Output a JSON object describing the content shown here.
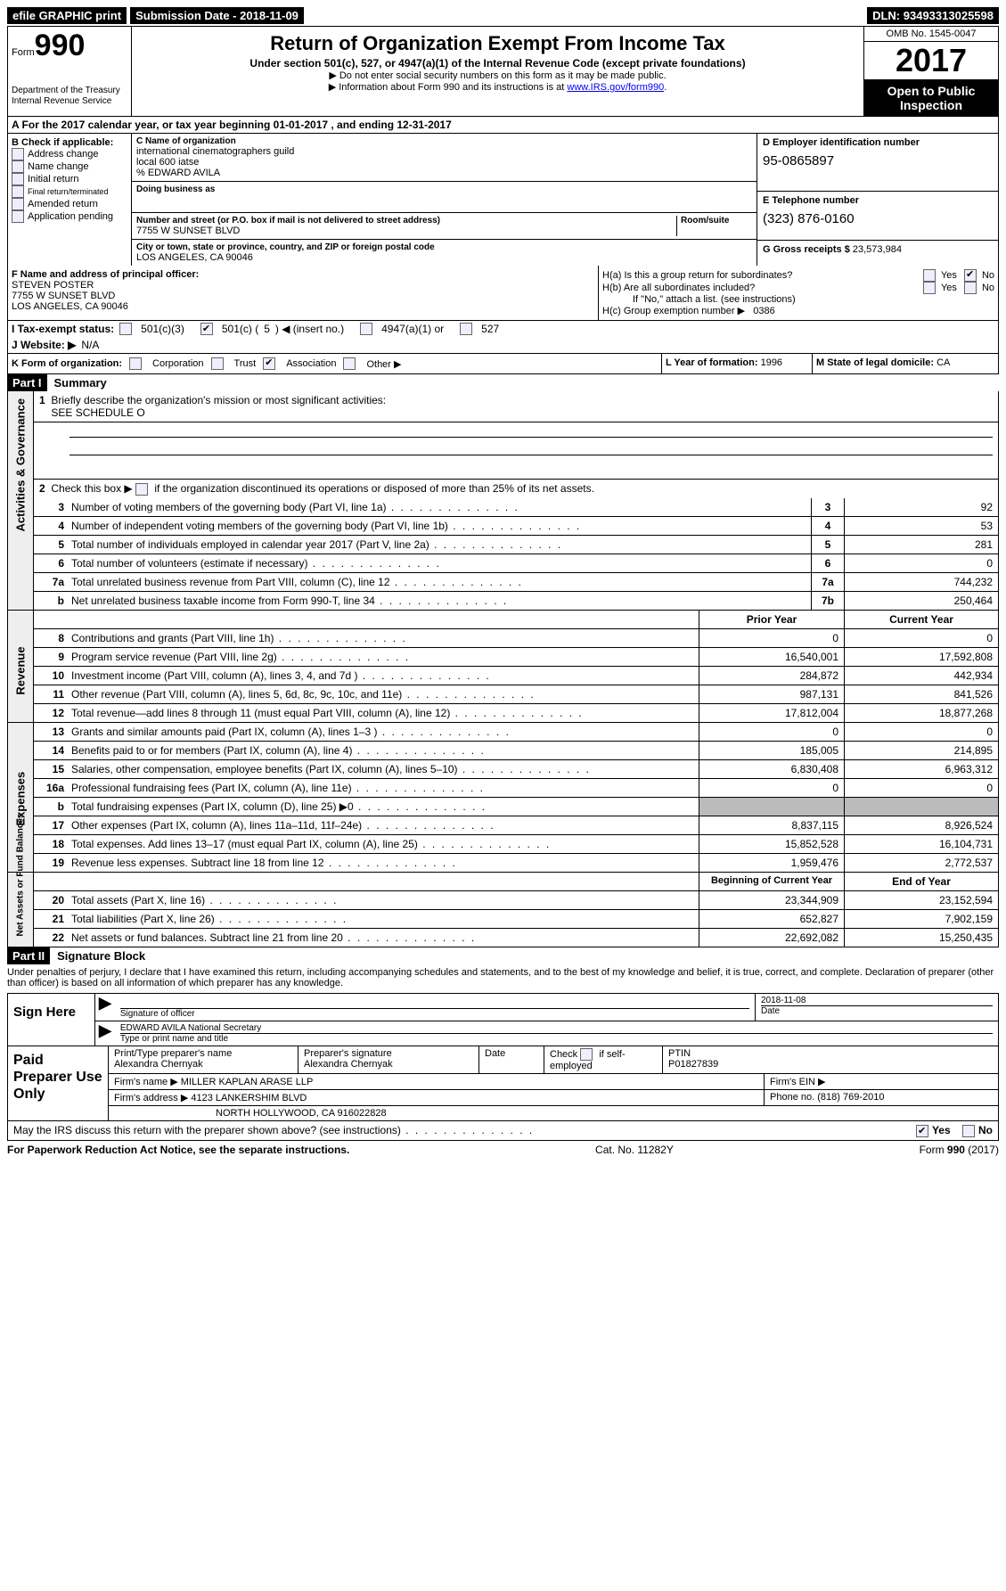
{
  "topbar": {
    "efile": "efile GRAPHIC print",
    "sub_label": "Submission Date -",
    "sub_date": "2018-11-09",
    "dln_label": "DLN:",
    "dln": "93493313025598"
  },
  "header": {
    "form_label": "Form",
    "form_num": "990",
    "dept1": "Department of the Treasury",
    "dept2": "Internal Revenue Service",
    "title": "Return of Organization Exempt From Income Tax",
    "sub": "Under section 501(c), 527, or 4947(a)(1) of the Internal Revenue Code (except private foundations)",
    "note1": "▶ Do not enter social security numbers on this form as it may be made public.",
    "note2_a": "▶ Information about Form 990 and its instructions is at ",
    "note2_link": "www.IRS.gov/form990",
    "omb": "OMB No. 1545-0047",
    "year": "2017",
    "open": "Open to Public Inspection"
  },
  "A": "A  For the 2017 calendar year, or tax year beginning 01-01-2017   , and ending 12-31-2017",
  "B": {
    "title": "B Check if applicable:",
    "opts": [
      "Address change",
      "Name change",
      "Initial return",
      "Final return/terminated",
      "Amended return",
      "Application pending"
    ]
  },
  "C": {
    "name_lab": "C Name of organization",
    "name1": "international cinematographers guild",
    "name2": "local 600 iatse",
    "name3": "% EDWARD AVILA",
    "dba_lab": "Doing business as",
    "addr_lab": "Number and street (or P.O. box if mail is not delivered to street address)",
    "room_lab": "Room/suite",
    "addr": "7755 W SUNSET BLVD",
    "city_lab": "City or town, state or province, country, and ZIP or foreign postal code",
    "city": "LOS ANGELES, CA  90046"
  },
  "D": {
    "lab": "D Employer identification number",
    "val": "95-0865897"
  },
  "E": {
    "lab": "E Telephone number",
    "val": "(323) 876-0160"
  },
  "G": {
    "lab": "G Gross receipts $",
    "val": "23,573,984"
  },
  "F": {
    "lab": "F  Name and address of principal officer:",
    "l1": "STEVEN POSTER",
    "l2": "7755 W SUNSET BLVD",
    "l3": "LOS ANGELES, CA  90046"
  },
  "H": {
    "a": "H(a)  Is this a group return for subordinates?",
    "b": "H(b)  Are all subordinates included?",
    "note": "If \"No,\" attach a list. (see instructions)",
    "c": "H(c)  Group exemption number ▶",
    "c_val": "0386",
    "yes": "Yes",
    "no": "No"
  },
  "I": {
    "lab": "I  Tax-exempt status:",
    "o1": "501(c)(3)",
    "o2a": "501(c) (",
    "o2b": "5",
    "o2c": ") ◀ (insert no.)",
    "o3": "4947(a)(1) or",
    "o4": "527"
  },
  "J": {
    "lab": "J  Website: ▶",
    "val": "N/A"
  },
  "K": {
    "lab": "K Form of organization:",
    "o": [
      "Corporation",
      "Trust",
      "Association",
      "Other ▶"
    ]
  },
  "L": {
    "lab": "L Year of formation:",
    "val": "1996"
  },
  "M": {
    "lab": "M State of legal domicile:",
    "val": "CA"
  },
  "part1": {
    "hdr": "Part I",
    "title": "Summary",
    "l1": "Briefly describe the organization's mission or most significant activities:",
    "l1v": "SEE SCHEDULE O",
    "l2": "Check this box ▶",
    "l2b": "if the organization discontinued its operations or disposed of more than 25% of its net assets.",
    "rows_gov": [
      {
        "n": "3",
        "t": "Number of voting members of the governing body (Part VI, line 1a)",
        "b": "3",
        "v": "92"
      },
      {
        "n": "4",
        "t": "Number of independent voting members of the governing body (Part VI, line 1b)",
        "b": "4",
        "v": "53"
      },
      {
        "n": "5",
        "t": "Total number of individuals employed in calendar year 2017 (Part V, line 2a)",
        "b": "5",
        "v": "281"
      },
      {
        "n": "6",
        "t": "Total number of volunteers (estimate if necessary)",
        "b": "6",
        "v": "0"
      },
      {
        "n": "7a",
        "t": "Total unrelated business revenue from Part VIII, column (C), line 12",
        "b": "7a",
        "v": "744,232"
      },
      {
        "n": "b",
        "t": "Net unrelated business taxable income from Form 990-T, line 34",
        "b": "7b",
        "v": "250,464"
      }
    ],
    "col_prior": "Prior Year",
    "col_curr": "Current Year",
    "rev": [
      {
        "n": "8",
        "t": "Contributions and grants (Part VIII, line 1h)",
        "p": "0",
        "c": "0"
      },
      {
        "n": "9",
        "t": "Program service revenue (Part VIII, line 2g)",
        "p": "16,540,001",
        "c": "17,592,808"
      },
      {
        "n": "10",
        "t": "Investment income (Part VIII, column (A), lines 3, 4, and 7d )",
        "p": "284,872",
        "c": "442,934"
      },
      {
        "n": "11",
        "t": "Other revenue (Part VIII, column (A), lines 5, 6d, 8c, 9c, 10c, and 11e)",
        "p": "987,131",
        "c": "841,526"
      },
      {
        "n": "12",
        "t": "Total revenue—add lines 8 through 11 (must equal Part VIII, column (A), line 12)",
        "p": "17,812,004",
        "c": "18,877,268"
      }
    ],
    "exp": [
      {
        "n": "13",
        "t": "Grants and similar amounts paid (Part IX, column (A), lines 1–3 )",
        "p": "0",
        "c": "0"
      },
      {
        "n": "14",
        "t": "Benefits paid to or for members (Part IX, column (A), line 4)",
        "p": "185,005",
        "c": "214,895"
      },
      {
        "n": "15",
        "t": "Salaries, other compensation, employee benefits (Part IX, column (A), lines 5–10)",
        "p": "6,830,408",
        "c": "6,963,312"
      },
      {
        "n": "16a",
        "t": "Professional fundraising fees (Part IX, column (A), line 11e)",
        "p": "0",
        "c": "0"
      },
      {
        "n": "b",
        "t": "Total fundraising expenses (Part IX, column (D), line 25) ▶0",
        "p": "",
        "c": "",
        "shade": true
      },
      {
        "n": "17",
        "t": "Other expenses (Part IX, column (A), lines 11a–11d, 11f–24e)",
        "p": "8,837,115",
        "c": "8,926,524"
      },
      {
        "n": "18",
        "t": "Total expenses. Add lines 13–17 (must equal Part IX, column (A), line 25)",
        "p": "15,852,528",
        "c": "16,104,731"
      },
      {
        "n": "19",
        "t": "Revenue less expenses. Subtract line 18 from line 12",
        "p": "1,959,476",
        "c": "2,772,537"
      }
    ],
    "col_begin": "Beginning of Current Year",
    "col_end": "End of Year",
    "net": [
      {
        "n": "20",
        "t": "Total assets (Part X, line 16)",
        "p": "23,344,909",
        "c": "23,152,594"
      },
      {
        "n": "21",
        "t": "Total liabilities (Part X, line 26)",
        "p": "652,827",
        "c": "7,902,159"
      },
      {
        "n": "22",
        "t": "Net assets or fund balances. Subtract line 21 from line 20",
        "p": "22,692,082",
        "c": "15,250,435"
      }
    ],
    "vlab_gov": "Activities & Governance",
    "vlab_rev": "Revenue",
    "vlab_exp": "Expenses",
    "vlab_net": "Net Assets or Fund Balances"
  },
  "part2": {
    "hdr": "Part II",
    "title": "Signature Block",
    "decl": "Under penalties of perjury, I declare that I have examined this return, including accompanying schedules and statements, and to the best of my knowledge and belief, it is true, correct, and complete. Declaration of preparer (other than officer) is based on all information of which preparer has any knowledge.",
    "sign": "Sign Here",
    "sig_lab": "Signature of officer",
    "date_lab": "Date",
    "date": "2018-11-08",
    "name": "EDWARD AVILA  National Secretary",
    "name_lab": "Type or print name and title"
  },
  "prep": {
    "title": "Paid Preparer Use Only",
    "c1": "Print/Type preparer's name",
    "v1": "Alexandra Chernyak",
    "c2": "Preparer's signature",
    "v2": "Alexandra Chernyak",
    "c3": "Date",
    "c4a": "Check",
    "c4b": "if self-employed",
    "c5": "PTIN",
    "v5": "P01827839",
    "firm_lab": "Firm's name    ▶",
    "firm": "MILLER KAPLAN ARASE LLP",
    "ein_lab": "Firm's EIN ▶",
    "addr_lab": "Firm's address ▶",
    "addr1": "4123 LANKERSHIM BLVD",
    "addr2": "NORTH HOLLYWOOD, CA  916022828",
    "phone_lab": "Phone no.",
    "phone": "(818) 769-2010"
  },
  "discuss": {
    "q": "May the IRS discuss this return with the preparer shown above? (see instructions)",
    "yes": "Yes",
    "no": "No"
  },
  "footer": {
    "l": "For Paperwork Reduction Act Notice, see the separate instructions.",
    "m": "Cat. No. 11282Y",
    "r": "Form 990 (2017)"
  }
}
